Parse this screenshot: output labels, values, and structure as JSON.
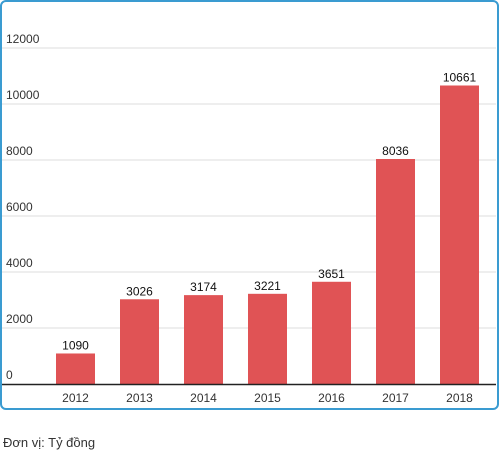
{
  "chart_data": {
    "type": "bar",
    "categories": [
      "2012",
      "2013",
      "2014",
      "2015",
      "2016",
      "2017",
      "2018"
    ],
    "values": [
      1090,
      3026,
      3174,
      3221,
      3651,
      8036,
      10661
    ],
    "data_labels": [
      "1090",
      "3026",
      "3174",
      "3221",
      "3651",
      "8036",
      "10661"
    ],
    "y_ticks": [
      "0",
      "2000",
      "4000",
      "6000",
      "8000",
      "10000",
      "12000"
    ],
    "ylim": [
      0,
      12000
    ],
    "grid": true,
    "bar_color": "#e05355",
    "frame_color": "#3a9bd1"
  },
  "footnote": "Đơn vị: Tỷ đồng"
}
